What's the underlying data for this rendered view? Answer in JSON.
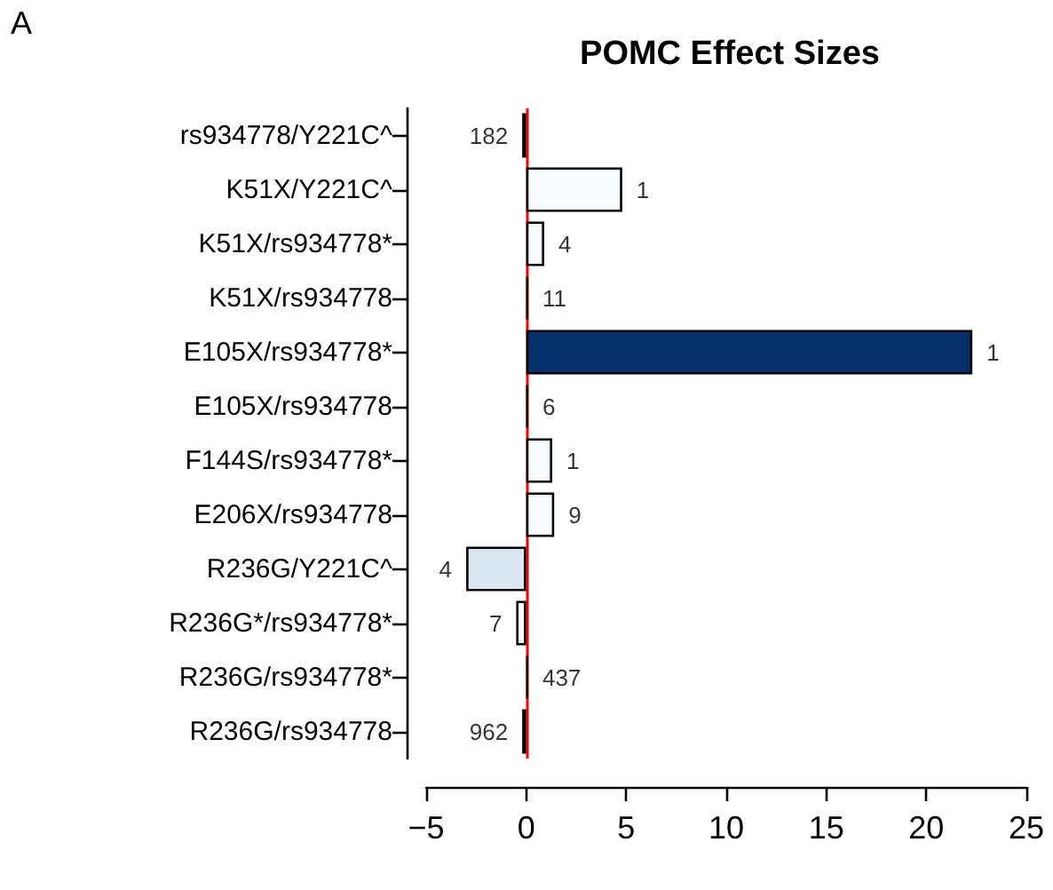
{
  "chart_data": {
    "type": "bar",
    "orientation": "horizontal",
    "title": "POMC Effect Sizes",
    "annotations": [
      "A",
      {
        "text": "182",
        "x": -0.2,
        "y": "rs934778/Y221C^"
      },
      {
        "text": "1",
        "x": 4.8,
        "y": "K51X/Y221C^"
      },
      {
        "text": "4",
        "x": 0.9,
        "y": "K51X/rs934778*"
      },
      {
        "text": "11",
        "x": 0.1,
        "y": "K51X/rs934778"
      },
      {
        "text": "1",
        "x": 22.3,
        "y": "E105X/rs934778*"
      },
      {
        "text": "6",
        "x": 0.1,
        "y": "E105X/rs934778"
      },
      {
        "text": "1",
        "x": 1.3,
        "y": "F144S/rs934778*"
      },
      {
        "text": "9",
        "x": 1.4,
        "y": "E206X/rs934778"
      },
      {
        "text": "4",
        "x": -3.0,
        "y": "R236G/Y221C^"
      },
      {
        "text": "7",
        "x": -0.5,
        "y": "R236G*/rs934778*"
      },
      {
        "text": "437",
        "x": 0.1,
        "y": "R236G/rs934778*"
      },
      {
        "text": "962",
        "x": -0.2,
        "y": "R236G/rs934778"
      }
    ],
    "categories": [
      "rs934778/Y221C^",
      "K51X/Y221C^",
      "K51X/rs934778*",
      "K51X/rs934778",
      "E105X/rs934778*",
      "E105X/rs934778",
      "F144S/rs934778*",
      "E206X/rs934778",
      "R236G/Y221C^",
      "R236G*/rs934778*",
      "R236G/rs934778*",
      "R236G/rs934778"
    ],
    "values": [
      -0.2,
      4.8,
      0.9,
      0.1,
      22.3,
      0.1,
      1.3,
      1.4,
      -3.0,
      -0.5,
      0.1,
      -0.2
    ],
    "colors": [
      "#000000",
      "#f7fbff",
      "#f7fbff",
      "#000000",
      "#08306b",
      "#000000",
      "#f7fbff",
      "#f7fbff",
      "#dbe6f3",
      "#ffffff",
      "#000000",
      "#000000"
    ],
    "xlim": [
      -5,
      25
    ],
    "xticks": [
      -5,
      0,
      5,
      10,
      15,
      20,
      25
    ],
    "ref_lines": [
      {
        "axis": "x",
        "value": 0,
        "color": "#ff0000"
      }
    ],
    "grid": false
  }
}
